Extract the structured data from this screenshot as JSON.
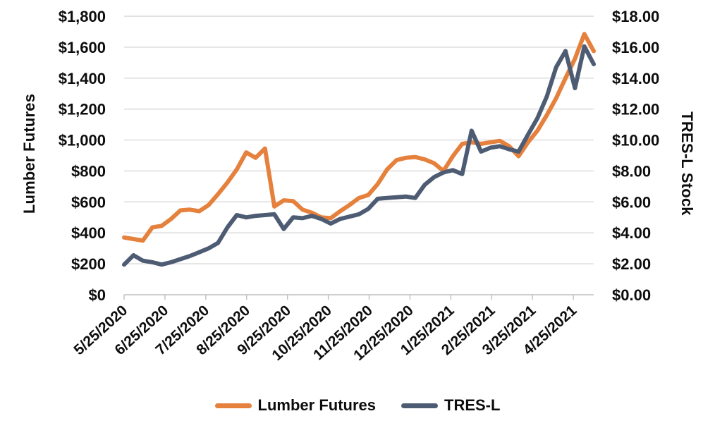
{
  "chart_data": {
    "type": "line",
    "title": "",
    "grid": true,
    "legend_position": "bottom",
    "x": [
      "5/25/2020",
      "6/1/2020",
      "6/8/2020",
      "6/15/2020",
      "6/22/2020",
      "6/29/2020",
      "7/6/2020",
      "7/13/2020",
      "7/20/2020",
      "7/27/2020",
      "8/3/2020",
      "8/10/2020",
      "8/17/2020",
      "8/24/2020",
      "8/31/2020",
      "9/7/2020",
      "9/14/2020",
      "9/21/2020",
      "9/28/2020",
      "10/5/2020",
      "10/12/2020",
      "10/19/2020",
      "10/26/2020",
      "11/2/2020",
      "11/9/2020",
      "11/16/2020",
      "11/23/2020",
      "11/30/2020",
      "12/7/2020",
      "12/14/2020",
      "12/21/2020",
      "12/28/2020",
      "1/4/2021",
      "1/11/2021",
      "1/18/2021",
      "1/25/2021",
      "2/1/2021",
      "2/8/2021",
      "2/15/2021",
      "2/22/2021",
      "3/1/2021",
      "3/8/2021",
      "3/15/2021",
      "3/22/2021",
      "3/29/2021",
      "4/5/2021",
      "4/12/2021",
      "4/19/2021",
      "4/26/2021",
      "5/3/2021",
      "5/10/2021"
    ],
    "x_tick_labels": [
      "5/25/2020",
      "6/25/2020",
      "7/25/2020",
      "8/25/2020",
      "9/25/2020",
      "10/25/2020",
      "11/25/2020",
      "12/25/2020",
      "1/25/2021",
      "2/25/2021",
      "3/25/2021",
      "4/25/2021"
    ],
    "series": [
      {
        "name": "Lumber Futures",
        "axis": "left",
        "color": "#E5813C",
        "values": [
          370,
          360,
          350,
          435,
          445,
          490,
          545,
          550,
          540,
          580,
          650,
          725,
          810,
          920,
          885,
          945,
          570,
          610,
          605,
          550,
          530,
          500,
          495,
          540,
          580,
          625,
          645,
          715,
          810,
          870,
          885,
          890,
          875,
          850,
          800,
          895,
          975,
          985,
          975,
          985,
          995,
          960,
          895,
          985,
          1060,
          1160,
          1270,
          1400,
          1525,
          1685,
          1575
        ]
      },
      {
        "name": "TRES-L",
        "axis": "right",
        "color": "#4E5C73",
        "values": [
          1.95,
          2.55,
          2.2,
          2.1,
          1.95,
          2.1,
          2.3,
          2.5,
          2.75,
          3.0,
          3.35,
          4.35,
          5.15,
          5.0,
          5.1,
          5.15,
          5.2,
          4.25,
          5.0,
          4.95,
          5.1,
          4.9,
          4.6,
          4.9,
          5.05,
          5.2,
          5.55,
          6.2,
          6.25,
          6.3,
          6.35,
          6.25,
          7.1,
          7.6,
          7.9,
          8.05,
          7.8,
          10.6,
          9.25,
          9.5,
          9.6,
          9.4,
          9.25,
          10.35,
          11.4,
          12.8,
          14.7,
          15.75,
          13.35,
          16.05,
          14.9
        ]
      }
    ],
    "left_axis": {
      "label": "Lumber Futures",
      "min": 0,
      "max": 1800,
      "step": 200,
      "tick_labels": [
        "$1,800",
        "$1,600",
        "$1,400",
        "$1,200",
        "$1,000",
        "$800",
        "$600",
        "$400",
        "$200",
        "$0"
      ]
    },
    "right_axis": {
      "label": "TRES-L Stock",
      "min": 0,
      "max": 18,
      "step": 2,
      "tick_labels": [
        "$18.00",
        "$16.00",
        "$14.00",
        "$12.00",
        "$10.00",
        "$8.00",
        "$6.00",
        "$4.00",
        "$2.00",
        "$0.00"
      ]
    }
  },
  "legend": {
    "items": [
      {
        "label": "Lumber Futures",
        "color": "#E5813C"
      },
      {
        "label": "TRES-L",
        "color": "#4E5C73"
      }
    ]
  },
  "colors": {
    "gridline": "#D9D9D9",
    "axis_line": "#BFBFBF",
    "text": "#0d0d0d",
    "background": "#FFFFFF"
  }
}
